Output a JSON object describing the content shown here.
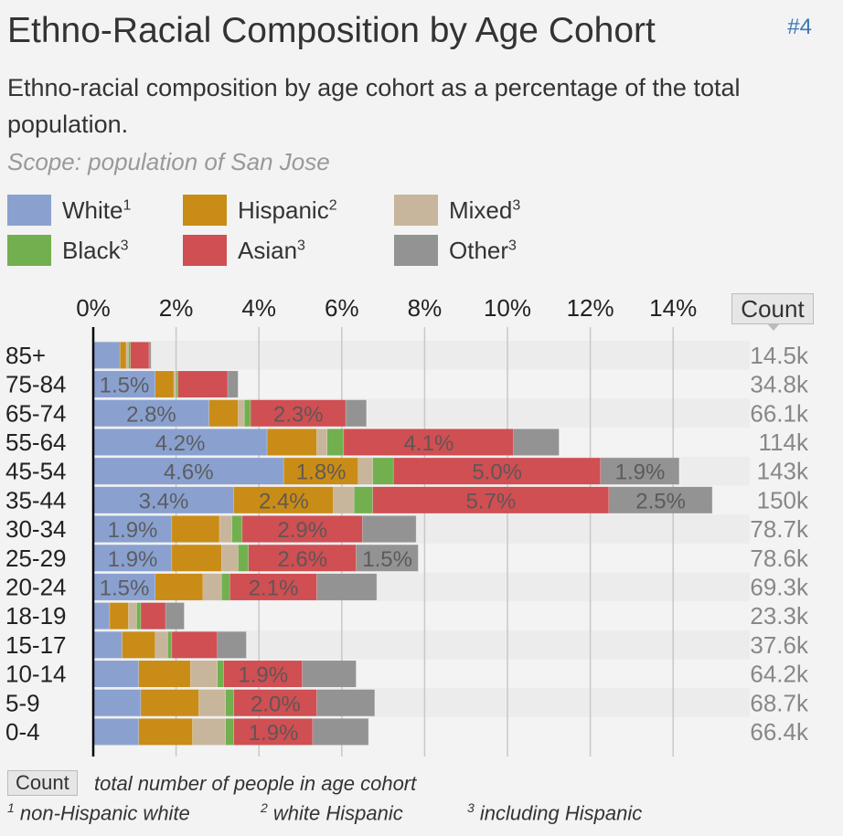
{
  "title": "Ethno-Racial Composition by Age Cohort",
  "chart_number": "#4",
  "subtitle": "Ethno-racial composition by age cohort as a percentage of the total population.",
  "scope": "Scope: population of San Jose",
  "legend": [
    {
      "label": "White",
      "sup": "1",
      "color": "#8aa1cf"
    },
    {
      "label": "Hispanic",
      "sup": "2",
      "color": "#c98c17"
    },
    {
      "label": "Mixed",
      "sup": "3",
      "color": "#c7b69c"
    },
    {
      "label": "Black",
      "sup": "3",
      "color": "#72b04f"
    },
    {
      "label": "Asian",
      "sup": "3",
      "color": "#cf4f53"
    },
    {
      "label": "Other",
      "sup": "3",
      "color": "#939393"
    }
  ],
  "count_header": "Count",
  "footer": {
    "count_label": "Count",
    "count_desc": "total number of people in age cohort",
    "notes": [
      {
        "sup": "1",
        "text": "non-Hispanic white"
      },
      {
        "sup": "2",
        "text": "white Hispanic"
      },
      {
        "sup": "3",
        "text": "including Hispanic"
      }
    ]
  },
  "chart_data": {
    "type": "bar",
    "orientation": "horizontal",
    "stacked": true,
    "x_ticks": [
      "0%",
      "2%",
      "4%",
      "6%",
      "8%",
      "10%",
      "12%",
      "14%"
    ],
    "xlim": [
      0,
      15
    ],
    "grid": true,
    "categories": [
      "85+",
      "75-84",
      "65-74",
      "55-64",
      "45-54",
      "35-44",
      "30-34",
      "25-29",
      "20-24",
      "18-19",
      "15-17",
      "10-14",
      "5-9",
      "0-4"
    ],
    "counts": [
      "14.5k",
      "34.8k",
      "66.1k",
      "114k",
      "143k",
      "150k",
      "78.7k",
      "78.6k",
      "69.3k",
      "23.3k",
      "37.6k",
      "64.2k",
      "68.7k",
      "66.4k"
    ],
    "series": [
      {
        "name": "White",
        "values": [
          0.65,
          1.5,
          2.8,
          4.2,
          4.6,
          3.4,
          1.9,
          1.9,
          1.5,
          0.4,
          0.7,
          1.1,
          1.15,
          1.1
        ],
        "labels": [
          "",
          "1.5%",
          "2.8%",
          "4.2%",
          "4.6%",
          "3.4%",
          "1.9%",
          "1.9%",
          "1.5%",
          "",
          "",
          "",
          "",
          ""
        ]
      },
      {
        "name": "Hispanic",
        "values": [
          0.15,
          0.45,
          0.7,
          1.2,
          1.8,
          2.4,
          1.15,
          1.2,
          1.15,
          0.45,
          0.8,
          1.25,
          1.4,
          1.3
        ],
        "labels": [
          "",
          "",
          "",
          "",
          "1.8%",
          "2.4%",
          "",
          "",
          "",
          "",
          "",
          "",
          "",
          ""
        ]
      },
      {
        "name": "Mixed",
        "values": [
          0.05,
          0.05,
          0.15,
          0.25,
          0.35,
          0.5,
          0.3,
          0.4,
          0.45,
          0.2,
          0.3,
          0.65,
          0.65,
          0.8
        ]
      },
      {
        "name": "Black",
        "values": [
          0.05,
          0.05,
          0.15,
          0.4,
          0.5,
          0.45,
          0.25,
          0.25,
          0.2,
          0.1,
          0.1,
          0.15,
          0.2,
          0.2
        ]
      },
      {
        "name": "Asian",
        "values": [
          0.45,
          1.2,
          2.3,
          4.1,
          5.0,
          5.7,
          2.9,
          2.6,
          2.1,
          0.6,
          1.1,
          1.9,
          2.0,
          1.9
        ],
        "labels": [
          "",
          "",
          "2.3%",
          "4.1%",
          "5.0%",
          "5.7%",
          "2.9%",
          "2.6%",
          "2.1%",
          "",
          "",
          "1.9%",
          "2.0%",
          "1.9%"
        ]
      },
      {
        "name": "Other",
        "values": [
          0.05,
          0.25,
          0.5,
          1.1,
          1.9,
          2.5,
          1.3,
          1.5,
          1.45,
          0.45,
          0.7,
          1.3,
          1.4,
          1.35
        ],
        "labels": [
          "",
          "",
          "",
          "",
          "1.9%",
          "2.5%",
          "",
          "1.5%",
          "",
          "",
          "",
          "",
          "",
          ""
        ]
      }
    ]
  }
}
